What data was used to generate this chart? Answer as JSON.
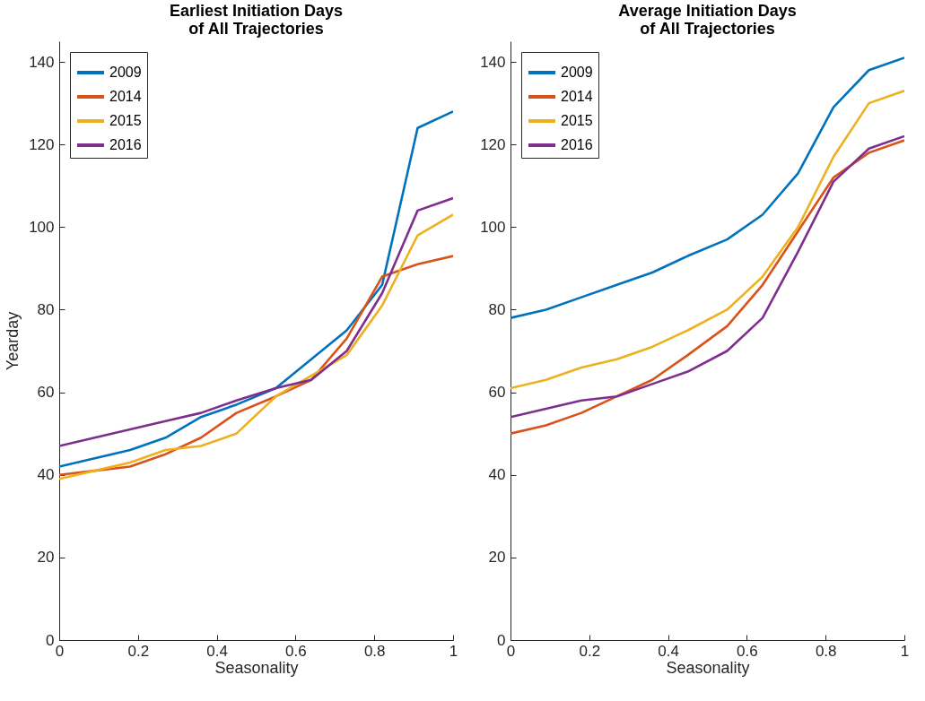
{
  "chart_data": [
    {
      "type": "line",
      "title": "Earliest Initiation Days\nof All Trajectories",
      "xlabel": "Seasonality",
      "ylabel": "Yearday",
      "x": [
        0,
        0.09,
        0.18,
        0.27,
        0.36,
        0.45,
        0.55,
        0.64,
        0.73,
        0.82,
        0.91,
        1
      ],
      "xlim": [
        0,
        1
      ],
      "xticks": [
        0,
        0.2,
        0.4,
        0.6,
        0.8,
        1
      ],
      "ylim": [
        0,
        145
      ],
      "yticks": [
        0,
        20,
        40,
        60,
        80,
        100,
        120,
        140
      ],
      "legend": "top left",
      "series": [
        {
          "name": "2009",
          "color": "#0072bd",
          "values": [
            42,
            44,
            46,
            49,
            54,
            57,
            61,
            68,
            75,
            86,
            124,
            128
          ]
        },
        {
          "name": "2014",
          "color": "#d95319",
          "values": [
            40,
            41,
            42,
            45,
            49,
            55,
            59,
            63,
            73,
            88,
            91,
            93
          ]
        },
        {
          "name": "2015",
          "color": "#edb120",
          "values": [
            39,
            41,
            43,
            46,
            47,
            50,
            59,
            64,
            69,
            81,
            98,
            103
          ]
        },
        {
          "name": "2016",
          "color": "#7e2f8e",
          "values": [
            47,
            49,
            51,
            53,
            55,
            58,
            61,
            63,
            70,
            84,
            104,
            107
          ]
        }
      ]
    },
    {
      "type": "line",
      "title": "Average Initiation Days\nof All Trajectories",
      "xlabel": "Seasonality",
      "x": [
        0,
        0.09,
        0.18,
        0.27,
        0.36,
        0.45,
        0.55,
        0.64,
        0.73,
        0.82,
        0.91,
        1
      ],
      "xlim": [
        0,
        1
      ],
      "xticks": [
        0,
        0.2,
        0.4,
        0.6,
        0.8,
        1
      ],
      "ylim": [
        0,
        145
      ],
      "yticks": [
        0,
        20,
        40,
        60,
        80,
        100,
        120,
        140
      ],
      "legend": "top left",
      "series": [
        {
          "name": "2009",
          "color": "#0072bd",
          "values": [
            78,
            80,
            83,
            86,
            89,
            93,
            97,
            103,
            113,
            129,
            138,
            141
          ]
        },
        {
          "name": "2014",
          "color": "#d95319",
          "values": [
            50,
            52,
            55,
            59,
            63,
            69,
            76,
            86,
            99,
            112,
            118,
            121
          ]
        },
        {
          "name": "2015",
          "color": "#edb120",
          "values": [
            61,
            63,
            66,
            68,
            71,
            75,
            80,
            88,
            100,
            117,
            130,
            133
          ]
        },
        {
          "name": "2016",
          "color": "#7e2f8e",
          "values": [
            54,
            56,
            58,
            59,
            62,
            65,
            70,
            78,
            94,
            111,
            119,
            122
          ]
        }
      ]
    }
  ]
}
